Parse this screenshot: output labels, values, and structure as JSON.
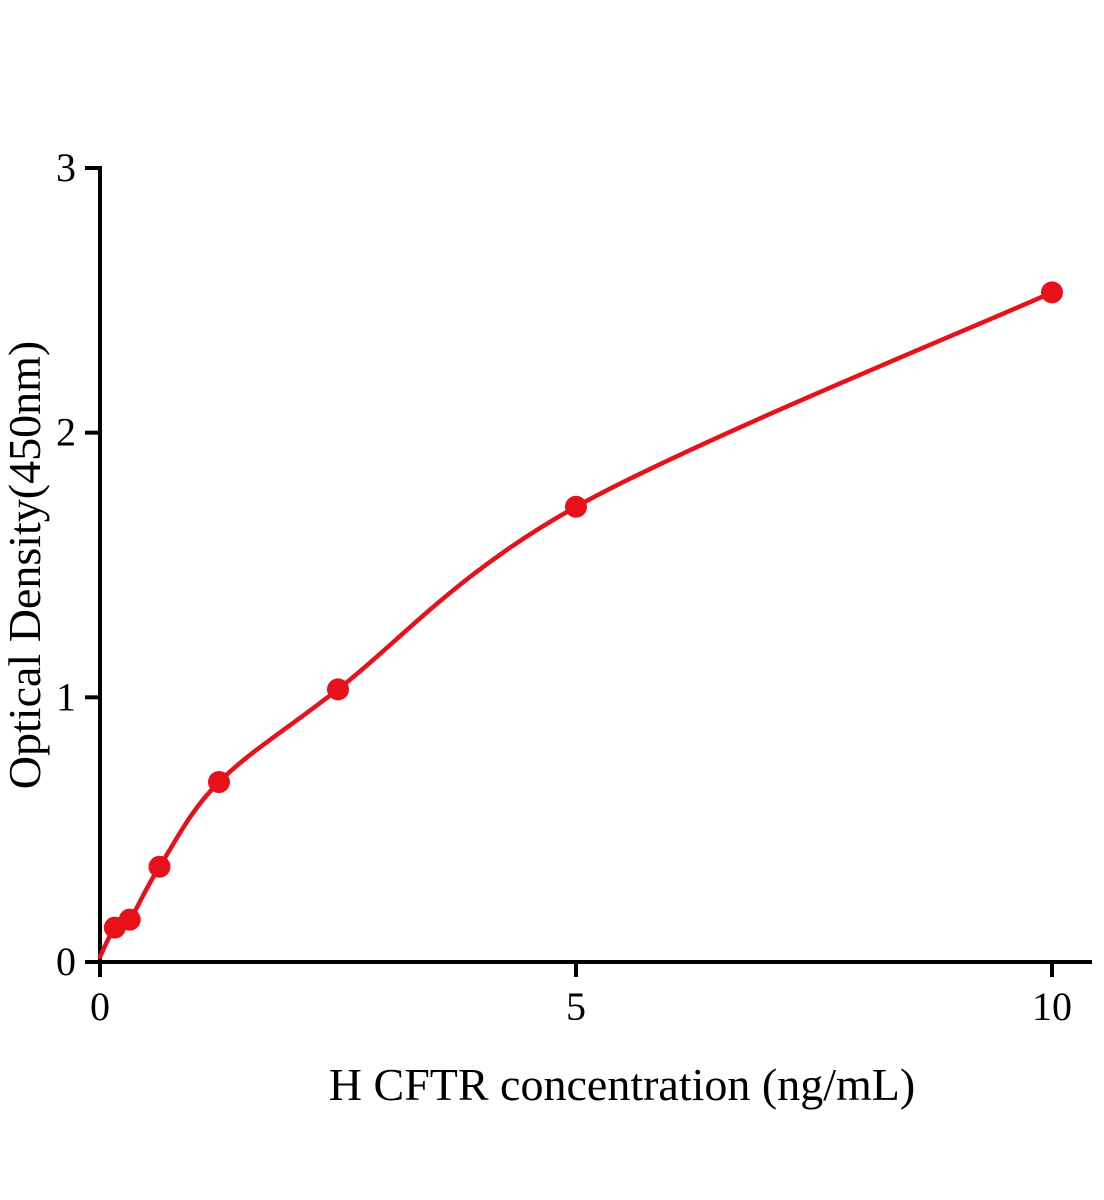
{
  "chart_data": {
    "type": "scatter",
    "title": "",
    "xlabel": "H CFTR concentration (ng/mL)",
    "ylabel": "Optical Density(450nm)",
    "x": [
      0.156,
      0.3125,
      0.625,
      1.25,
      2.5,
      5,
      10
    ],
    "y": [
      0.13,
      0.16,
      0.36,
      0.68,
      1.03,
      1.72,
      2.53
    ],
    "curve_start": [
      0,
      0.02
    ],
    "xticks": [
      0,
      5,
      10
    ],
    "yticks": [
      0,
      1,
      2,
      3
    ],
    "xlim": [
      0,
      10.4
    ],
    "ylim": [
      0,
      3
    ],
    "grid": false,
    "legend": null,
    "line_color": "#e8111a",
    "marker_color": "#e8111a",
    "axis_color": "#000000"
  }
}
